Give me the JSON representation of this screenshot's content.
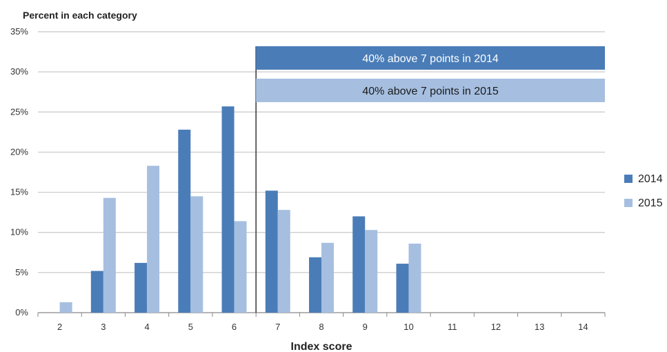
{
  "chart_data": {
    "type": "bar",
    "ylabel": "Percent in each category",
    "xlabel": "Index score",
    "categories": [
      "2",
      "3",
      "4",
      "5",
      "6",
      "7",
      "8",
      "9",
      "10",
      "11",
      "12",
      "13",
      "14"
    ],
    "ylim": [
      0,
      35
    ],
    "yticks": [
      "0%",
      "5%",
      "10%",
      "15%",
      "20%",
      "25%",
      "30%",
      "35%"
    ],
    "grid": true,
    "legend_position": "right",
    "series": [
      {
        "name": "2014",
        "color": "#4a7db8",
        "values": [
          0,
          5.2,
          6.2,
          22.8,
          25.7,
          15.2,
          6.9,
          12.0,
          6.1,
          0,
          0,
          0,
          0
        ]
      },
      {
        "name": "2015",
        "color": "#a6bfe0",
        "values": [
          1.3,
          14.3,
          18.3,
          14.5,
          11.4,
          12.8,
          8.7,
          10.3,
          8.6,
          0,
          0,
          0,
          0
        ]
      }
    ],
    "annotations": [
      {
        "text": "40% above 7 points in 2014",
        "color": "#4a7db8",
        "text_color": "#ffffff"
      },
      {
        "text": "40% above 7 points in 2015",
        "color": "#a6bfe0",
        "text_color": "#1a1a1a"
      }
    ]
  }
}
